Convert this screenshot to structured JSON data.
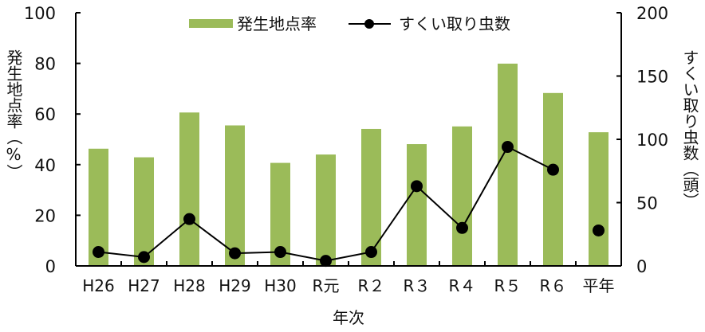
{
  "chart_data": {
    "type": "bar+line",
    "title": "",
    "xlabel": "年次",
    "ylabel_left": "発生地点率（％）",
    "ylabel_right": "すくい取り虫数（頭）",
    "categories": [
      "H26",
      "H27",
      "H28",
      "H29",
      "H30",
      "R元",
      "R２",
      "R３",
      "R４",
      "R５",
      "R６",
      "平年"
    ],
    "series": [
      {
        "name": "発生地点率",
        "type": "bar",
        "axis": "left",
        "color": "#9bbb59",
        "values": [
          46.3,
          42.9,
          60.6,
          55.5,
          40.7,
          44.0,
          54.1,
          48.1,
          55.1,
          79.9,
          68.3,
          52.8
        ]
      },
      {
        "name": "すくい取り虫数",
        "type": "line",
        "axis": "right",
        "color": "#000000",
        "values": [
          11,
          7,
          37,
          10,
          11,
          4,
          11,
          63,
          30,
          94,
          76,
          28
        ],
        "connect_last": false
      }
    ],
    "ylim_left": [
      0,
      100
    ],
    "yticks_left": [
      0,
      20,
      40,
      60,
      80,
      100
    ],
    "ylim_right": [
      0,
      200
    ],
    "yticks_right": [
      0,
      50,
      100,
      150,
      200
    ],
    "grid": false,
    "legend_position": "top"
  },
  "labels": {
    "xlabel": "年次",
    "ylabel_left": "発生地点率（%）",
    "ylabel_right": "すくい取り虫数（頭）",
    "legend_bar": "発生地点率",
    "legend_line": "すくい取り虫数"
  }
}
